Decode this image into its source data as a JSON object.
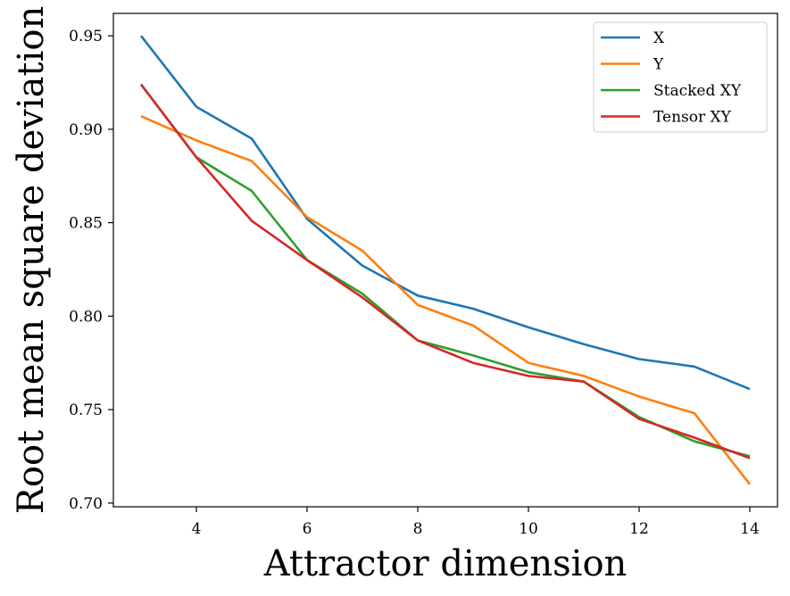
{
  "chart_data": {
    "type": "line",
    "xlabel": "Attractor dimension",
    "ylabel": "Root mean square deviation",
    "xlim": [
      2.5,
      14.5
    ],
    "ylim": [
      0.698,
      0.962
    ],
    "xticks": [
      4,
      6,
      8,
      10,
      12,
      14
    ],
    "yticks": [
      0.7,
      0.75,
      0.8,
      0.85,
      0.9,
      0.95
    ],
    "legend_position": "top-right",
    "grid": false,
    "x": [
      3,
      4,
      5,
      6,
      7,
      8,
      9,
      10,
      11,
      12,
      13,
      14
    ],
    "series": [
      {
        "name": "X",
        "color": "#1f77b4",
        "values": [
          0.95,
          0.912,
          0.895,
          0.852,
          0.827,
          0.811,
          0.804,
          0.794,
          0.785,
          0.777,
          0.773,
          0.761
        ]
      },
      {
        "name": "Y",
        "color": "#ff7f0e",
        "values": [
          0.907,
          0.894,
          0.883,
          0.853,
          0.835,
          0.806,
          0.795,
          0.775,
          0.768,
          0.757,
          0.748,
          0.71
        ]
      },
      {
        "name": "Stacked XY",
        "color": "#2ca02c",
        "values": [
          0.924,
          0.885,
          0.867,
          0.83,
          0.812,
          0.787,
          0.779,
          0.77,
          0.765,
          0.746,
          0.733,
          0.725
        ]
      },
      {
        "name": "Tensor XY",
        "color": "#d62728",
        "values": [
          0.924,
          0.885,
          0.851,
          0.83,
          0.81,
          0.787,
          0.775,
          0.768,
          0.765,
          0.745,
          0.735,
          0.724
        ]
      }
    ]
  }
}
